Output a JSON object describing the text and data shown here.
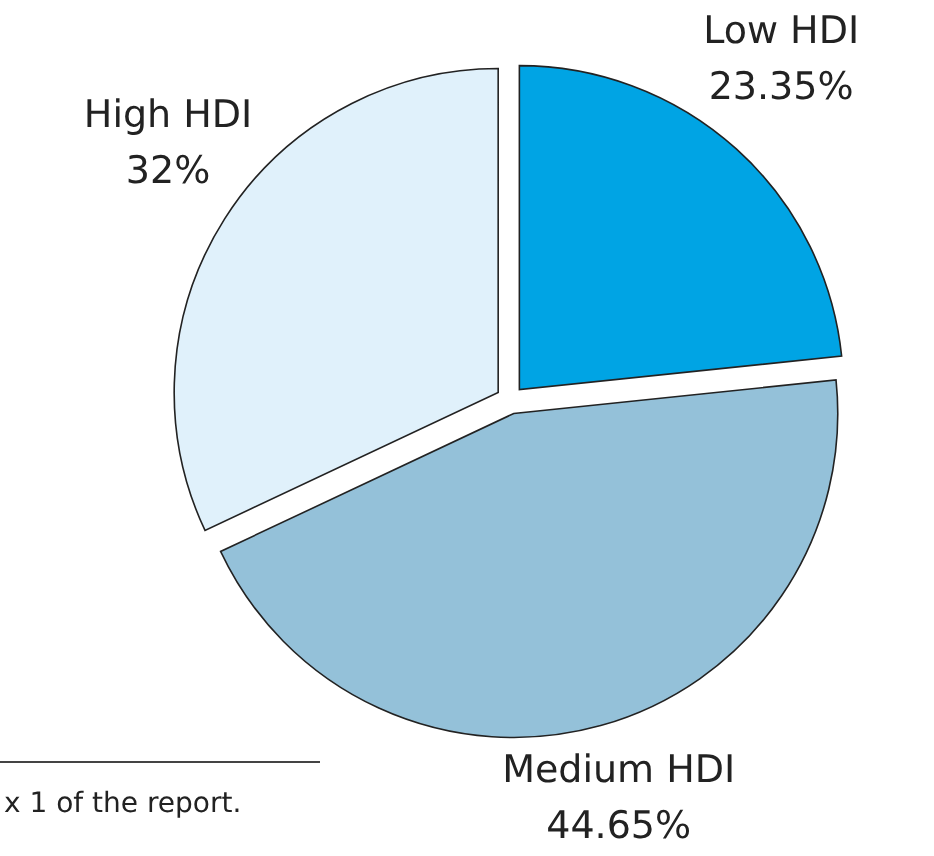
{
  "chart_data": {
    "type": "pie",
    "categories": [
      "Low HDI",
      "Medium HDI",
      "High HDI"
    ],
    "values": [
      23.35,
      44.65,
      32
    ],
    "colors": [
      "#00a4e4",
      "#94c1d9",
      "#e0f1fb"
    ],
    "value_labels": [
      "23.35%",
      "44.65%",
      "32%"
    ],
    "annotations": [
      "x 1 of the report."
    ]
  }
}
